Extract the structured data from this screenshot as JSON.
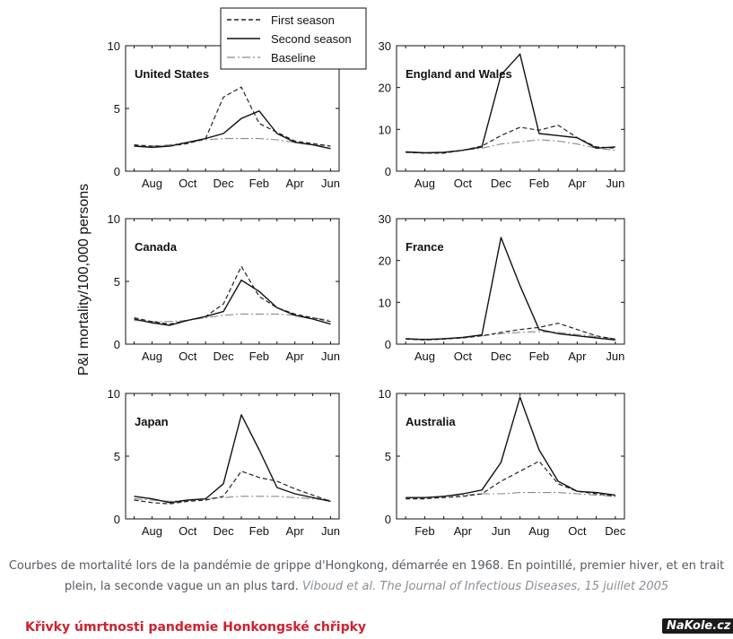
{
  "figure": {
    "ylabel": "P&I mortality/100,000 persons",
    "legend": {
      "placement": "top-center",
      "entries": [
        {
          "label": "First season",
          "style": "dashed"
        },
        {
          "label": "Second season",
          "style": "solid"
        },
        {
          "label": "Baseline",
          "style": "dash-dot"
        }
      ]
    }
  },
  "chart_data": [
    {
      "type": "line",
      "title": "United States",
      "categories": [
        "Jul",
        "Aug",
        "Sep",
        "Oct",
        "Nov",
        "Dec",
        "Jan",
        "Feb",
        "Mar",
        "Apr",
        "May",
        "Jun"
      ],
      "tick_labels": [
        "Aug",
        "Oct",
        "Dec",
        "Feb",
        "Apr",
        "Jun"
      ],
      "ylim": [
        0,
        10
      ],
      "yticks": [
        0,
        5,
        10
      ],
      "series": [
        {
          "name": "First season",
          "values": [
            2.1,
            2.0,
            2.0,
            2.2,
            2.6,
            5.9,
            6.7,
            3.8,
            3.1,
            2.4,
            2.2,
            2.0
          ]
        },
        {
          "name": "Second season",
          "values": [
            2.0,
            1.9,
            2.0,
            2.3,
            2.6,
            3.0,
            4.2,
            4.8,
            3.0,
            2.3,
            2.1,
            1.8
          ]
        },
        {
          "name": "Baseline",
          "values": [
            2.0,
            2.0,
            2.1,
            2.3,
            2.5,
            2.6,
            2.6,
            2.6,
            2.5,
            2.3,
            2.1,
            2.0
          ]
        }
      ]
    },
    {
      "type": "line",
      "title": "England and Wales",
      "categories": [
        "Jul",
        "Aug",
        "Sep",
        "Oct",
        "Nov",
        "Dec",
        "Jan",
        "Feb",
        "Mar",
        "Apr",
        "May",
        "Jun"
      ],
      "tick_labels": [
        "Aug",
        "Oct",
        "Dec",
        "Feb",
        "Apr",
        "Jun"
      ],
      "ylim": [
        0,
        30
      ],
      "yticks": [
        0,
        10,
        20,
        30
      ],
      "series": [
        {
          "name": "First season",
          "values": [
            4.5,
            4.3,
            4.3,
            5.0,
            6.0,
            8.5,
            10.5,
            9.8,
            11.0,
            8.0,
            5.8,
            5.5
          ]
        },
        {
          "name": "Second season",
          "values": [
            4.6,
            4.4,
            4.5,
            5.0,
            5.8,
            23.0,
            28.0,
            9.0,
            8.5,
            8.0,
            5.5,
            5.8
          ]
        },
        {
          "name": "Baseline",
          "values": [
            4.5,
            4.4,
            4.5,
            5.0,
            5.5,
            6.5,
            7.0,
            7.5,
            7.2,
            6.5,
            5.5,
            5.0
          ]
        }
      ]
    },
    {
      "type": "line",
      "title": "Canada",
      "categories": [
        "Jul",
        "Aug",
        "Sep",
        "Oct",
        "Nov",
        "Dec",
        "Jan",
        "Feb",
        "Mar",
        "Apr",
        "May",
        "Jun"
      ],
      "tick_labels": [
        "Aug",
        "Oct",
        "Dec",
        "Feb",
        "Apr",
        "Jun"
      ],
      "ylim": [
        0,
        10
      ],
      "yticks": [
        0,
        5,
        10
      ],
      "series": [
        {
          "name": "First season",
          "values": [
            2.1,
            1.8,
            1.6,
            1.9,
            2.2,
            3.2,
            6.2,
            3.8,
            2.9,
            2.4,
            2.1,
            1.8
          ]
        },
        {
          "name": "Second season",
          "values": [
            2.0,
            1.7,
            1.5,
            1.9,
            2.2,
            2.6,
            5.1,
            4.2,
            2.9,
            2.3,
            2.0,
            1.6
          ]
        },
        {
          "name": "Baseline",
          "values": [
            1.9,
            1.8,
            1.8,
            1.9,
            2.1,
            2.3,
            2.4,
            2.4,
            2.4,
            2.3,
            2.1,
            1.9
          ]
        }
      ]
    },
    {
      "type": "line",
      "title": "France",
      "categories": [
        "Jul",
        "Aug",
        "Sep",
        "Oct",
        "Nov",
        "Dec",
        "Jan",
        "Feb",
        "Mar",
        "Apr",
        "May",
        "Jun"
      ],
      "tick_labels": [
        "Aug",
        "Oct",
        "Dec",
        "Feb",
        "Apr",
        "Jun"
      ],
      "ylim": [
        0,
        30
      ],
      "yticks": [
        0,
        10,
        20,
        30
      ],
      "series": [
        {
          "name": "First season",
          "values": [
            1.2,
            1.0,
            1.2,
            1.5,
            2.0,
            2.8,
            3.5,
            4.0,
            5.0,
            3.5,
            2.0,
            1.2
          ]
        },
        {
          "name": "Second season",
          "values": [
            1.3,
            1.1,
            1.3,
            1.6,
            2.2,
            25.5,
            14.0,
            3.5,
            2.5,
            2.0,
            1.5,
            1.0
          ]
        },
        {
          "name": "Baseline",
          "values": [
            1.3,
            1.2,
            1.3,
            1.6,
            2.0,
            2.5,
            2.8,
            3.0,
            2.8,
            2.3,
            1.8,
            1.3
          ]
        }
      ]
    },
    {
      "type": "line",
      "title": "Japan",
      "categories": [
        "Jul",
        "Aug",
        "Sep",
        "Oct",
        "Nov",
        "Dec",
        "Jan",
        "Feb",
        "Mar",
        "Apr",
        "May",
        "Jun"
      ],
      "tick_labels": [
        "Aug",
        "Oct",
        "Dec",
        "Feb",
        "Apr",
        "Jun"
      ],
      "ylim": [
        0,
        10
      ],
      "yticks": [
        0,
        5,
        10
      ],
      "series": [
        {
          "name": "First season",
          "values": [
            1.5,
            1.3,
            1.2,
            1.4,
            1.5,
            1.8,
            3.8,
            3.3,
            3.0,
            2.4,
            1.9,
            1.4
          ]
        },
        {
          "name": "Second season",
          "values": [
            1.8,
            1.6,
            1.3,
            1.5,
            1.6,
            2.8,
            8.3,
            5.5,
            2.5,
            2.0,
            1.7,
            1.4
          ]
        },
        {
          "name": "Baseline",
          "values": [
            1.6,
            1.5,
            1.4,
            1.5,
            1.6,
            1.7,
            1.8,
            1.8,
            1.8,
            1.7,
            1.6,
            1.5
          ]
        }
      ]
    },
    {
      "type": "line",
      "title": "Australia",
      "categories": [
        "Jan",
        "Feb",
        "Mar",
        "Apr",
        "May",
        "Jun",
        "Jul",
        "Aug",
        "Sep",
        "Oct",
        "Nov",
        "Dec"
      ],
      "tick_labels": [
        "Feb",
        "Apr",
        "Jun",
        "Aug",
        "Oct",
        "Dec"
      ],
      "ylim": [
        0,
        10
      ],
      "yticks": [
        0,
        5,
        10
      ],
      "series": [
        {
          "name": "First season",
          "values": [
            1.6,
            1.6,
            1.7,
            1.8,
            2.0,
            3.0,
            3.8,
            4.6,
            2.8,
            2.2,
            2.0,
            1.8
          ]
        },
        {
          "name": "Second season",
          "values": [
            1.7,
            1.7,
            1.8,
            2.0,
            2.3,
            4.5,
            9.7,
            5.5,
            3.0,
            2.2,
            2.1,
            1.9
          ]
        },
        {
          "name": "Baseline",
          "values": [
            1.7,
            1.7,
            1.8,
            1.9,
            2.0,
            2.0,
            2.1,
            2.1,
            2.1,
            2.0,
            1.9,
            1.8
          ]
        }
      ]
    }
  ],
  "caption": {
    "text": "Courbes de mortalité lors de la pandémie de grippe d'Hongkong, démarrée en 1968. En pointillé, premier hiver, et en trait plein, la seconde vague un an plus tard.",
    "citation": "Viboud et al. The Journal of Infectious Diseases, 15 juillet 2005"
  },
  "subtitle": "Křivky úmrtnosti pandemie Honkongské chřipky",
  "watermark": "NaKole.cz"
}
